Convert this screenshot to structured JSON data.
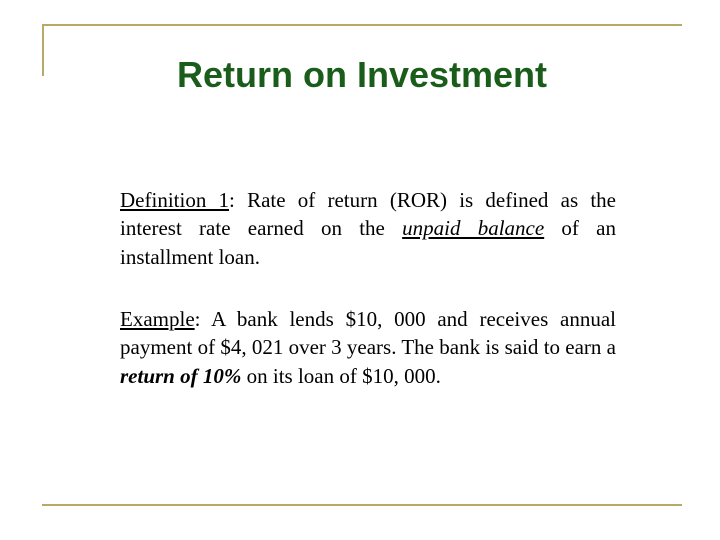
{
  "slide": {
    "title": "Return on Investment",
    "definition": {
      "label": "Definition 1",
      "prefix": ": Rate of return (ROR) is defined as the interest rate earned on the ",
      "emphasized": "unpaid balance",
      "suffix": " of an installment loan."
    },
    "example": {
      "label": "Example",
      "prefix": ": A bank lends $10, 000 and receives annual payment of $4, 021 over 3 years. The bank is said to earn a ",
      "emphasized": "return of 10%",
      "suffix": " on its loan of $10, 000."
    }
  },
  "style": {
    "title_color": "#1a5c1a",
    "title_fontsize": 36,
    "body_fontsize": 21,
    "body_color": "#000000",
    "border_color": "#b8a968",
    "background_color": "#ffffff"
  }
}
